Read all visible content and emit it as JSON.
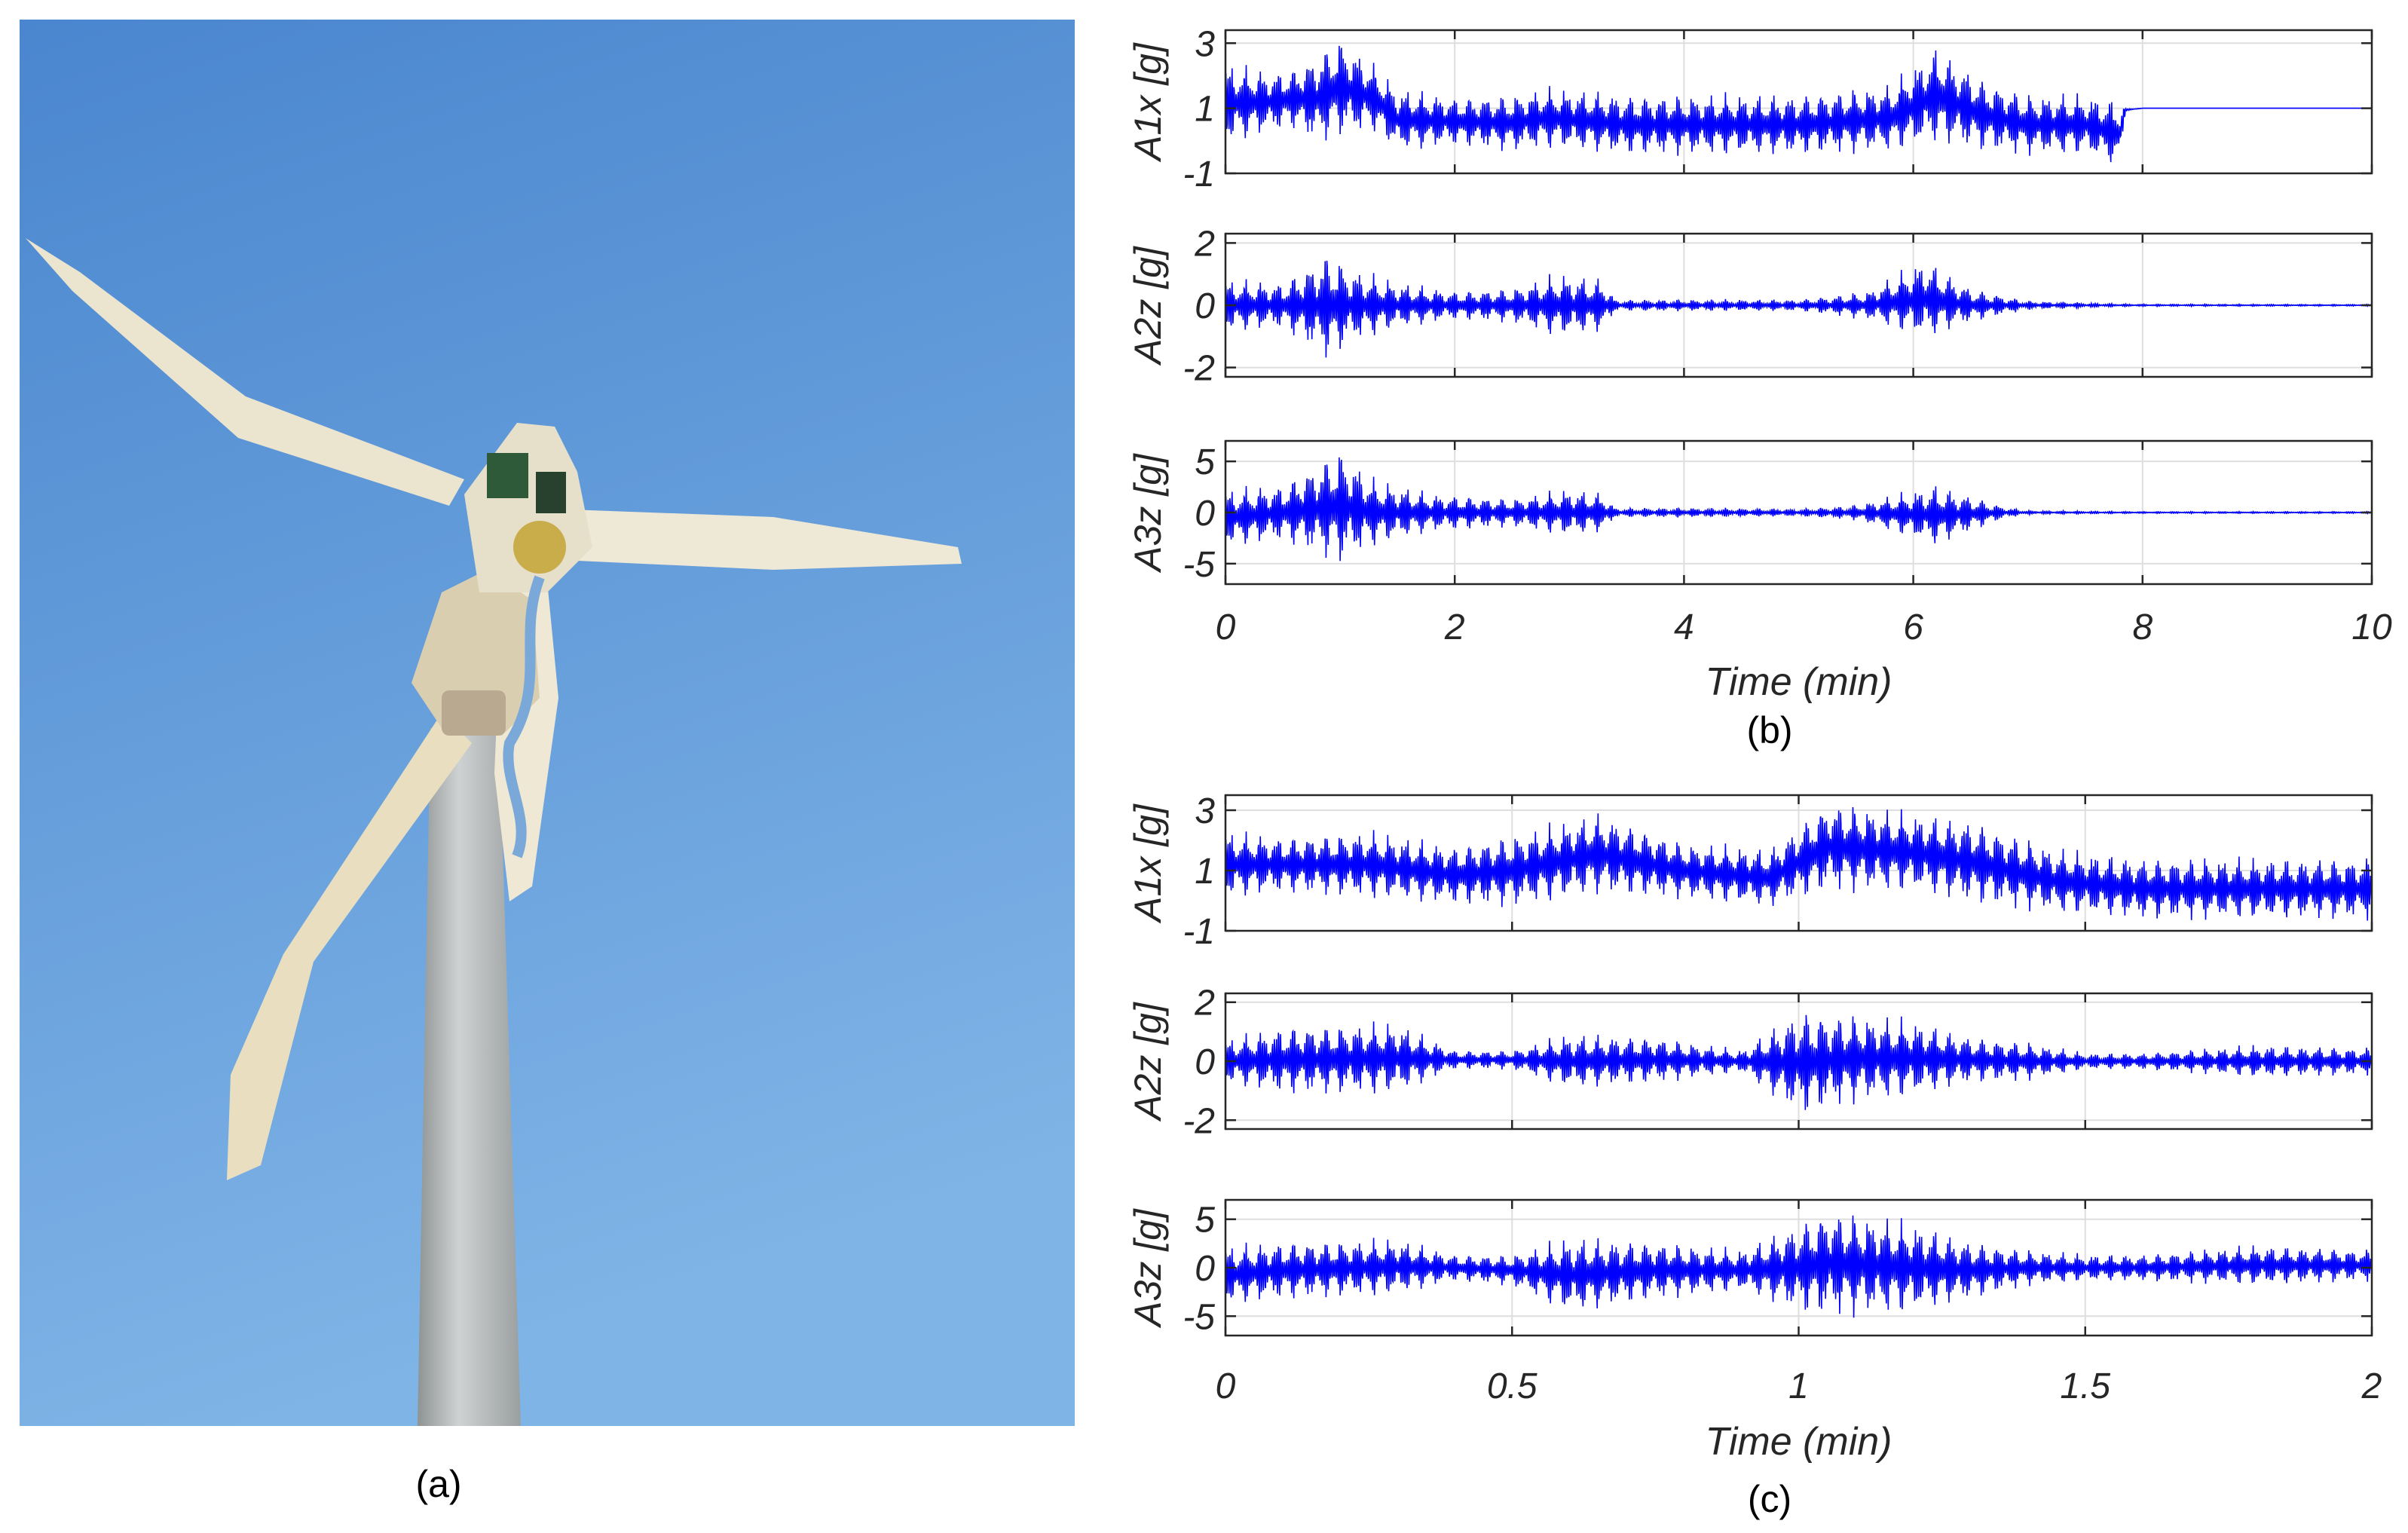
{
  "figure": {
    "panel_a_caption": "(a)",
    "panel_b_caption": "(b)",
    "panel_c_caption": "(c)",
    "photo_subject": "small wind turbine against blue sky",
    "colors": {
      "sky_top": "#4a86cf",
      "sky_bottom": "#7fb4e6",
      "blade": "#eee6cf",
      "nacelle": "#d9ceb0",
      "tower": "#b9bcbd",
      "signal": "#0000ff"
    }
  },
  "chart_data": [
    {
      "type": "line",
      "panel": "(b)",
      "xlabel": "Time (min)",
      "xlim": [
        0,
        10
      ],
      "xticks": [
        0,
        2,
        4,
        6,
        8,
        10
      ],
      "grid": true,
      "series": [
        {
          "name": "A1x [g]",
          "ylim": [
            -1,
            3.4
          ],
          "yticks": [
            -1,
            1,
            3
          ],
          "x": [
            0,
            0.4,
            0.6,
            0.8,
            1.0,
            1.3,
            1.5,
            2.0,
            2.5,
            2.8,
            3.2,
            3.5,
            4.0,
            5.0,
            5.8,
            6.2,
            6.6,
            7.0,
            7.5,
            7.8,
            7.85,
            8.0,
            10.0
          ],
          "upper": [
            2.5,
            2.2,
            2.3,
            2.8,
            3.3,
            2.4,
            1.7,
            1.4,
            1.5,
            1.7,
            1.6,
            1.5,
            1.5,
            1.5,
            1.8,
            3.0,
            2.0,
            1.5,
            1.5,
            1.3,
            1.0,
            1.0,
            1.0
          ],
          "lower": [
            -0.2,
            0.2,
            0.3,
            -0.2,
            0.0,
            0.2,
            -0.4,
            -0.2,
            -0.4,
            -0.3,
            -0.4,
            -0.5,
            -0.5,
            -0.5,
            -0.4,
            -0.2,
            -0.4,
            -0.5,
            -0.5,
            -0.9,
            0.9,
            1.0,
            1.0
          ]
        },
        {
          "name": "A2z [g]",
          "ylim": [
            -2.3,
            2.3
          ],
          "yticks": [
            -2,
            0,
            2
          ],
          "x": [
            0,
            0.5,
            0.9,
            1.1,
            1.5,
            2.0,
            2.5,
            2.9,
            3.3,
            3.4,
            4.0,
            5.0,
            5.6,
            6.1,
            6.5,
            7.0,
            7.8,
            8.0,
            10.0
          ],
          "upper": [
            0.9,
            0.8,
            1.9,
            1.3,
            0.8,
            0.5,
            0.6,
            1.1,
            0.9,
            0.2,
            0.2,
            0.2,
            0.5,
            1.6,
            0.6,
            0.15,
            0.05,
            0.04,
            0.03
          ],
          "lower": [
            -0.9,
            -0.8,
            -1.9,
            -1.3,
            -0.8,
            -0.5,
            -0.6,
            -1.1,
            -0.9,
            -0.2,
            -0.2,
            -0.2,
            -0.5,
            -1.2,
            -0.6,
            -0.15,
            -0.05,
            -0.04,
            -0.03
          ]
        },
        {
          "name": "A3z [g]",
          "ylim": [
            -7,
            7
          ],
          "yticks": [
            -5,
            0,
            5
          ],
          "x": [
            0,
            0.5,
            1.0,
            1.3,
            1.8,
            2.5,
            3.0,
            3.3,
            3.4,
            4.0,
            5.0,
            5.5,
            6.2,
            6.8,
            7.0,
            8.0,
            10.0
          ],
          "upper": [
            2.5,
            3.0,
            6.8,
            3.5,
            2.0,
            1.5,
            2.5,
            2.0,
            0.5,
            0.5,
            0.4,
            0.8,
            3.0,
            0.6,
            0.2,
            0.1,
            0.1
          ],
          "lower": [
            -3.5,
            -3.0,
            -5.5,
            -3.5,
            -2.0,
            -1.5,
            -2.5,
            -2.0,
            -0.5,
            -0.5,
            -0.4,
            -0.8,
            -3.5,
            -0.6,
            -0.2,
            -0.1,
            -0.1
          ]
        }
      ]
    },
    {
      "type": "line",
      "panel": "(c)",
      "xlabel": "Time (min)",
      "xlim": [
        0,
        2
      ],
      "xticks": [
        0,
        0.5,
        1,
        1.5,
        2
      ],
      "grid": true,
      "series": [
        {
          "name": "A1x [g]",
          "ylim": [
            -1,
            3.5
          ],
          "yticks": [
            -1,
            1,
            3
          ],
          "x": [
            0,
            0.1,
            0.25,
            0.4,
            0.5,
            0.65,
            0.8,
            0.95,
            1.05,
            1.2,
            1.3,
            1.45,
            1.6,
            2.0
          ],
          "upper": [
            2.4,
            2.2,
            2.4,
            1.9,
            2.3,
            3.0,
            2.0,
            1.8,
            3.4,
            3.0,
            2.8,
            1.8,
            1.5,
            1.5
          ],
          "lower": [
            0.0,
            0.2,
            0.0,
            -0.2,
            -0.3,
            0.1,
            0.0,
            -0.3,
            0.2,
            0.2,
            -0.2,
            -0.5,
            -0.7,
            -0.7
          ]
        },
        {
          "name": "A2z [g]",
          "ylim": [
            -2.3,
            2.3
          ],
          "yticks": [
            -2,
            0,
            2
          ],
          "x": [
            0,
            0.1,
            0.3,
            0.4,
            0.5,
            0.6,
            0.75,
            0.9,
            1.0,
            1.1,
            1.2,
            1.3,
            1.4,
            1.5,
            1.6,
            1.8,
            2.0
          ],
          "upper": [
            0.8,
            1.3,
            1.4,
            0.4,
            0.4,
            1.0,
            0.9,
            0.4,
            1.9,
            1.7,
            1.5,
            0.9,
            0.7,
            0.3,
            0.3,
            0.6,
            0.5
          ],
          "lower": [
            -0.8,
            -1.2,
            -1.2,
            -0.3,
            -0.3,
            -1.0,
            -0.8,
            -0.4,
            -2.0,
            -1.5,
            -1.3,
            -0.8,
            -0.7,
            -0.3,
            -0.3,
            -0.6,
            -0.5
          ]
        },
        {
          "name": "A3z [g]",
          "ylim": [
            -7,
            7
          ],
          "yticks": [
            -5,
            0,
            5
          ],
          "x": [
            0,
            0.1,
            0.3,
            0.4,
            0.5,
            0.6,
            0.75,
            0.9,
            1.0,
            1.05,
            1.2,
            1.3,
            1.4,
            1.5,
            1.6,
            1.8,
            2.0
          ],
          "upper": [
            2.5,
            3.0,
            3.2,
            1.5,
            1.5,
            3.5,
            3.0,
            2.0,
            5.0,
            6.5,
            5.0,
            3.0,
            2.0,
            1.5,
            1.5,
            2.5,
            2.0
          ],
          "lower": [
            -4.0,
            -3.5,
            -3.0,
            -1.5,
            -2.0,
            -5.0,
            -3.5,
            -2.5,
            -5.0,
            -5.5,
            -5.0,
            -3.5,
            -2.0,
            -1.5,
            -1.5,
            -2.0,
            -1.5
          ]
        }
      ]
    }
  ]
}
